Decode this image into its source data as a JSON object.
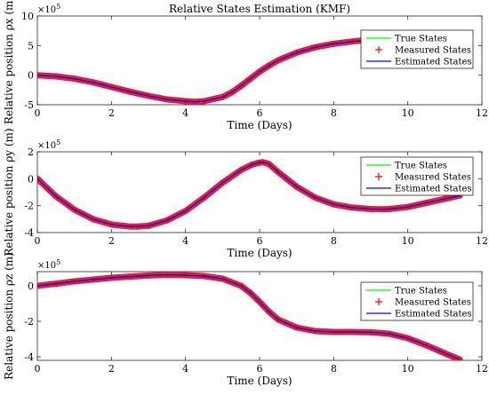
{
  "chart_data": [
    {
      "type": "line",
      "title": "Relative States Estimation (KMF)",
      "xlabel": "Time (Days)",
      "ylabel": "Relative position ρx (m)",
      "y_multiplier": "×10^5",
      "xlim": [
        0,
        12
      ],
      "ylim": [
        -5,
        10
      ],
      "xticks": [
        0,
        2,
        4,
        6,
        8,
        10,
        12
      ],
      "yticks": [
        -5,
        0,
        5,
        10
      ],
      "grid": false,
      "legend": {
        "position": "top-right",
        "entries": [
          "True States",
          "Measured States",
          "Estimated States"
        ]
      },
      "series": [
        {
          "name": "True States",
          "x": [
            0,
            0.5,
            1,
            1.5,
            2,
            2.5,
            3,
            3.5,
            4,
            4.25,
            4.5,
            5,
            5.25,
            5.5,
            5.75,
            6,
            6.25,
            6.5,
            7,
            7.5,
            8,
            8.5,
            9,
            9.5,
            10,
            10.5,
            11,
            11.4
          ],
          "y": [
            0,
            -0.2,
            -0.6,
            -1.2,
            -2.0,
            -2.8,
            -3.5,
            -4.1,
            -4.4,
            -4.5,
            -4.4,
            -3.7,
            -2.9,
            -1.8,
            -0.6,
            0.6,
            1.6,
            2.5,
            3.8,
            4.7,
            5.3,
            5.7,
            6.0,
            6.2,
            6.3,
            6.35,
            6.4,
            6.4
          ]
        },
        {
          "name": "Measured States",
          "x": [
            0,
            0.5,
            1,
            1.5,
            2,
            2.5,
            3,
            3.5,
            4,
            4.25,
            4.5,
            5,
            5.25,
            5.5,
            5.75,
            6,
            6.25,
            6.5,
            7,
            7.5,
            8,
            8.5,
            9,
            9.5,
            10,
            10.5,
            11,
            11.4
          ],
          "y": [
            0,
            -0.2,
            -0.6,
            -1.2,
            -2.0,
            -2.8,
            -3.5,
            -4.1,
            -4.4,
            -4.5,
            -4.4,
            -3.7,
            -2.9,
            -1.8,
            -0.6,
            0.6,
            1.6,
            2.5,
            3.8,
            4.7,
            5.3,
            5.7,
            6.0,
            6.2,
            6.3,
            6.35,
            6.4,
            6.4
          ]
        },
        {
          "name": "Estimated States",
          "x": [
            0,
            0.5,
            1,
            1.5,
            2,
            2.5,
            3,
            3.5,
            4,
            4.25,
            4.5,
            5,
            5.25,
            5.5,
            5.75,
            6,
            6.25,
            6.5,
            7,
            7.5,
            8,
            8.5,
            9,
            9.5,
            10,
            10.5,
            11,
            11.4
          ],
          "y": [
            0,
            -0.2,
            -0.6,
            -1.2,
            -2.0,
            -2.8,
            -3.5,
            -4.1,
            -4.4,
            -4.5,
            -4.4,
            -3.7,
            -2.9,
            -1.8,
            -0.6,
            0.6,
            1.6,
            2.5,
            3.8,
            4.7,
            5.3,
            5.7,
            6.0,
            6.2,
            6.3,
            6.35,
            6.4,
            6.4
          ]
        }
      ]
    },
    {
      "type": "line",
      "title": "",
      "xlabel": "Time (Days)",
      "ylabel": "Relative position ρy (m)",
      "y_multiplier": "×10^5",
      "xlim": [
        0,
        12
      ],
      "ylim": [
        -4,
        2
      ],
      "xticks": [
        0,
        2,
        4,
        6,
        8,
        10,
        12
      ],
      "yticks": [
        -4,
        -2,
        0,
        2
      ],
      "grid": false,
      "legend": {
        "position": "top-right",
        "entries": [
          "True States",
          "Measured States",
          "Estimated States"
        ]
      },
      "series": [
        {
          "name": "True States",
          "x": [
            0,
            0.5,
            1,
            1.5,
            2,
            2.5,
            2.7,
            3,
            3.5,
            4,
            4.5,
            5,
            5.5,
            5.8,
            6,
            6.1,
            6.25,
            6.5,
            7,
            7.5,
            8,
            8.5,
            9,
            9.3,
            9.5,
            10,
            10.5,
            11,
            11.4
          ],
          "y": [
            0,
            -1.3,
            -2.3,
            -3.0,
            -3.4,
            -3.55,
            -3.55,
            -3.5,
            -3.1,
            -2.4,
            -1.4,
            -0.3,
            0.65,
            1.05,
            1.2,
            1.22,
            1.1,
            0.5,
            -0.6,
            -1.4,
            -1.9,
            -2.15,
            -2.25,
            -2.27,
            -2.25,
            -2.1,
            -1.8,
            -1.5,
            -1.25
          ]
        },
        {
          "name": "Measured States",
          "x": [
            0,
            0.5,
            1,
            1.5,
            2,
            2.5,
            2.7,
            3,
            3.5,
            4,
            4.5,
            5,
            5.5,
            5.8,
            6,
            6.1,
            6.25,
            6.5,
            7,
            7.5,
            8,
            8.5,
            9,
            9.3,
            9.5,
            10,
            10.5,
            11,
            11.4
          ],
          "y": [
            0,
            -1.3,
            -2.3,
            -3.0,
            -3.4,
            -3.55,
            -3.55,
            -3.5,
            -3.1,
            -2.4,
            -1.4,
            -0.3,
            0.65,
            1.05,
            1.2,
            1.22,
            1.1,
            0.5,
            -0.6,
            -1.4,
            -1.9,
            -2.15,
            -2.25,
            -2.27,
            -2.25,
            -2.1,
            -1.8,
            -1.5,
            -1.25
          ]
        },
        {
          "name": "Estimated States",
          "x": [
            0,
            0.5,
            1,
            1.5,
            2,
            2.5,
            2.7,
            3,
            3.5,
            4,
            4.5,
            5,
            5.5,
            5.8,
            6,
            6.1,
            6.25,
            6.5,
            7,
            7.5,
            8,
            8.5,
            9,
            9.3,
            9.5,
            10,
            10.5,
            11,
            11.4
          ],
          "y": [
            0,
            -1.3,
            -2.3,
            -3.0,
            -3.4,
            -3.55,
            -3.55,
            -3.5,
            -3.1,
            -2.4,
            -1.4,
            -0.3,
            0.65,
            1.05,
            1.2,
            1.22,
            1.1,
            0.5,
            -0.6,
            -1.4,
            -1.9,
            -2.15,
            -2.25,
            -2.27,
            -2.25,
            -2.1,
            -1.8,
            -1.5,
            -1.25
          ]
        }
      ]
    },
    {
      "type": "line",
      "title": "",
      "xlabel": "Time (Days)",
      "ylabel": "Relative position ρz (m)",
      "y_multiplier": "×10^5",
      "xlim": [
        0,
        12
      ],
      "ylim": [
        -4.2,
        0.8
      ],
      "xticks": [
        0,
        2,
        4,
        6,
        8,
        10,
        12
      ],
      "yticks": [
        -4,
        -2,
        0
      ],
      "grid": false,
      "legend": {
        "position": "top-right",
        "entries": [
          "True States",
          "Measured States",
          "Estimated States"
        ]
      },
      "series": [
        {
          "name": "True States",
          "x": [
            0,
            0.5,
            1,
            1.5,
            2,
            2.5,
            3,
            3.5,
            4,
            4.5,
            5,
            5.5,
            5.75,
            6,
            6.25,
            6.5,
            7,
            7.5,
            8,
            8.5,
            9,
            9.5,
            10,
            10.5,
            11,
            11.4
          ],
          "y": [
            0,
            0.12,
            0.25,
            0.35,
            0.45,
            0.52,
            0.58,
            0.62,
            0.6,
            0.55,
            0.4,
            0.0,
            -0.4,
            -0.9,
            -1.45,
            -1.9,
            -2.35,
            -2.55,
            -2.6,
            -2.6,
            -2.62,
            -2.7,
            -2.95,
            -3.35,
            -3.8,
            -4.15
          ]
        },
        {
          "name": "Measured States",
          "x": [
            0,
            0.5,
            1,
            1.5,
            2,
            2.5,
            3,
            3.5,
            4,
            4.5,
            5,
            5.5,
            5.75,
            6,
            6.25,
            6.5,
            7,
            7.5,
            8,
            8.5,
            9,
            9.5,
            10,
            10.5,
            11,
            11.4
          ],
          "y": [
            0,
            0.12,
            0.25,
            0.35,
            0.45,
            0.52,
            0.58,
            0.62,
            0.6,
            0.55,
            0.4,
            0.0,
            -0.4,
            -0.9,
            -1.45,
            -1.9,
            -2.35,
            -2.55,
            -2.6,
            -2.6,
            -2.62,
            -2.7,
            -2.95,
            -3.35,
            -3.8,
            -4.15
          ]
        },
        {
          "name": "Estimated States",
          "x": [
            0,
            0.5,
            1,
            1.5,
            2,
            2.5,
            3,
            3.5,
            4,
            4.5,
            5,
            5.5,
            5.75,
            6,
            6.25,
            6.5,
            7,
            7.5,
            8,
            8.5,
            9,
            9.5,
            10,
            10.5,
            11,
            11.4
          ],
          "y": [
            0,
            0.12,
            0.25,
            0.35,
            0.45,
            0.52,
            0.58,
            0.62,
            0.6,
            0.55,
            0.4,
            0.0,
            -0.4,
            -0.9,
            -1.45,
            -1.9,
            -2.35,
            -2.55,
            -2.6,
            -2.6,
            -2.62,
            -2.7,
            -2.95,
            -3.35,
            -3.8,
            -4.15
          ]
        }
      ]
    }
  ],
  "colors": {
    "true_states": "#00ff00",
    "measured_states": "#ff0000",
    "estimated_states": "#0000ff",
    "measured_band": "#e0203a"
  }
}
